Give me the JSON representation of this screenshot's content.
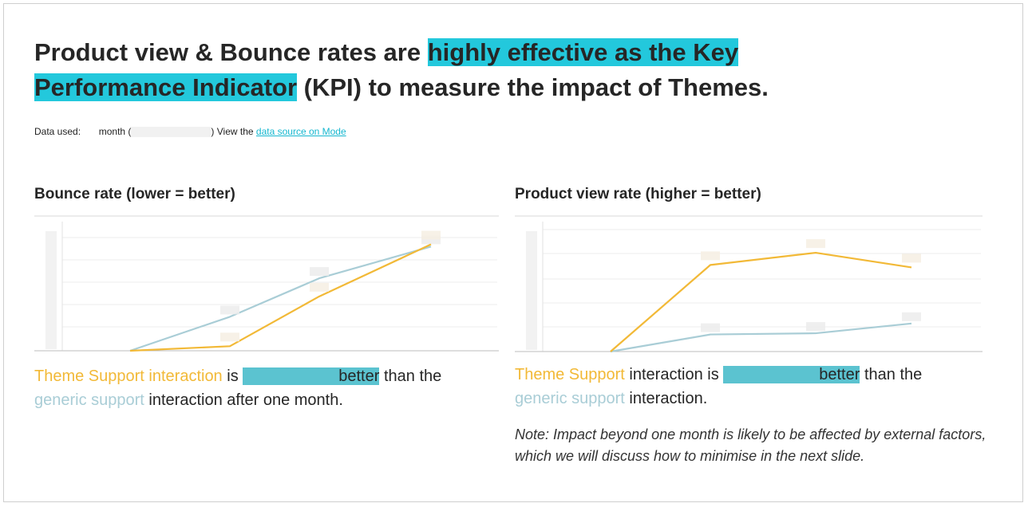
{
  "headline": {
    "part1": "Product view & Bounce rates are ",
    "highlight1": "highly effective as the Key",
    "highlight2": "Performance Indicator",
    "part2": " (KPI) to measure the impact of Themes."
  },
  "data_used": {
    "label": "Data used:",
    "month": "month (",
    "view_text": ") View the ",
    "link": "data source on Mode"
  },
  "colors": {
    "theme": "#f2b937",
    "generic": "#a9cdd6",
    "highlight": "#23c8dc"
  },
  "chart_data": [
    {
      "type": "line",
      "title": "Bounce rate (lower = better)",
      "xlabel": "",
      "ylabel": "",
      "x": [
        1,
        2,
        3,
        4
      ],
      "ylim": [
        0,
        1
      ],
      "grid": true,
      "series": [
        {
          "name": "",
          "color": "#f2b937",
          "values": [
            0.0,
            0.04,
            0.48,
            0.94
          ]
        },
        {
          "name": "",
          "color": "#a9cdd6",
          "values": [
            0.0,
            0.3,
            0.64,
            0.92
          ]
        }
      ]
    },
    {
      "type": "line",
      "title": "Product view rate (higher = better)",
      "xlabel": "",
      "ylabel": "",
      "x": [
        1,
        2,
        3,
        4
      ],
      "ylim": [
        0,
        1
      ],
      "grid": true,
      "series": [
        {
          "name": "",
          "color": "#f2b937",
          "values": [
            0.0,
            0.71,
            0.81,
            0.69
          ]
        },
        {
          "name": "",
          "color": "#a9cdd6",
          "values": [
            0.0,
            0.14,
            0.15,
            0.23
          ]
        }
      ]
    }
  ],
  "captions": {
    "left": {
      "theme": "Theme Support interaction",
      "is": " is ",
      "better": "better",
      "than": " than the",
      "generic": "generic support",
      "rest": " interaction after one month."
    },
    "right": {
      "theme": "Theme Support",
      "is": " interaction is ",
      "better": "better",
      "than": " than the",
      "generic": "generic support",
      "rest": " interaction."
    }
  },
  "note": "Note: Impact beyond one month is likely to be affected by external factors, which we will discuss how to minimise in the next slide."
}
